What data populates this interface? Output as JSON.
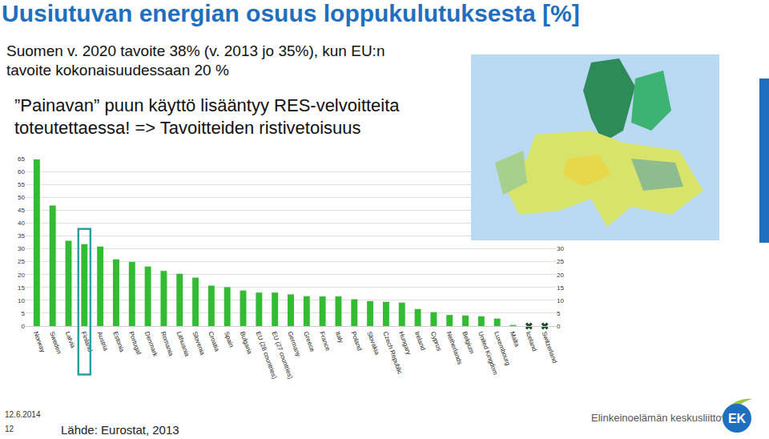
{
  "chart_data": {
    "type": "bar",
    "title": "Uusiutuvan energian osuus loppukulutuksesta [%]",
    "categories": [
      "Norway",
      "Sweden",
      "Latvia",
      "Finland",
      "Austria",
      "Estonia",
      "Portugal",
      "Denmark",
      "Romania",
      "Lithuania",
      "Slovenia",
      "Croatia",
      "Spain",
      "Bulgaria",
      "EU (28 countries)",
      "EU (27 countries)",
      "Germany",
      "Greece",
      "France",
      "Italy",
      "Poland",
      "Slovakia",
      "Czech Republic",
      "Hungary",
      "Ireland",
      "Cyprus",
      "Netherlands",
      "Belgium",
      "United Kingdom",
      "Luxembourg",
      "Malta",
      "Iceland",
      "Switzerland"
    ],
    "values": [
      64.7,
      46.8,
      33.1,
      31.8,
      30.9,
      25.9,
      24.9,
      23.1,
      21.4,
      20.3,
      18.8,
      15.7,
      15.1,
      13.8,
      13.0,
      13.0,
      12.3,
      11.6,
      11.5,
      11.5,
      10.4,
      9.7,
      9.4,
      9.1,
      6.6,
      5.4,
      4.3,
      4.1,
      3.8,
      2.9,
      0.4,
      null,
      null
    ],
    "color": "#33bb33",
    "marker": "x",
    "ylim": [
      0,
      65
    ],
    "yticks": [
      0,
      5,
      10,
      15,
      20,
      25,
      30,
      35,
      40,
      45,
      50,
      55,
      60,
      65
    ],
    "y2lim": [
      0,
      65
    ],
    "y2ticks": [
      0,
      5,
      10,
      15,
      20,
      25,
      30
    ],
    "grid": true
  },
  "slide": {
    "lines_1": [
      "Suomen v. 2020 tavoite 38% (v. 2013 jo 35%), kun EU:n",
      "tavoite kokonaisuudessaan 20 %"
    ],
    "lines_2": [
      "”Painavan” puun käyttö lisääntyy RES-velvoitteita",
      "toteutettaessa! => Tavoitteiden ristivetoisuus"
    ],
    "date": "12.6.2014",
    "page": "12",
    "source": "Lähde: Eurostat, 2013",
    "organization": "Elinkeinoelämän keskusliitto",
    "logo": "EK"
  }
}
